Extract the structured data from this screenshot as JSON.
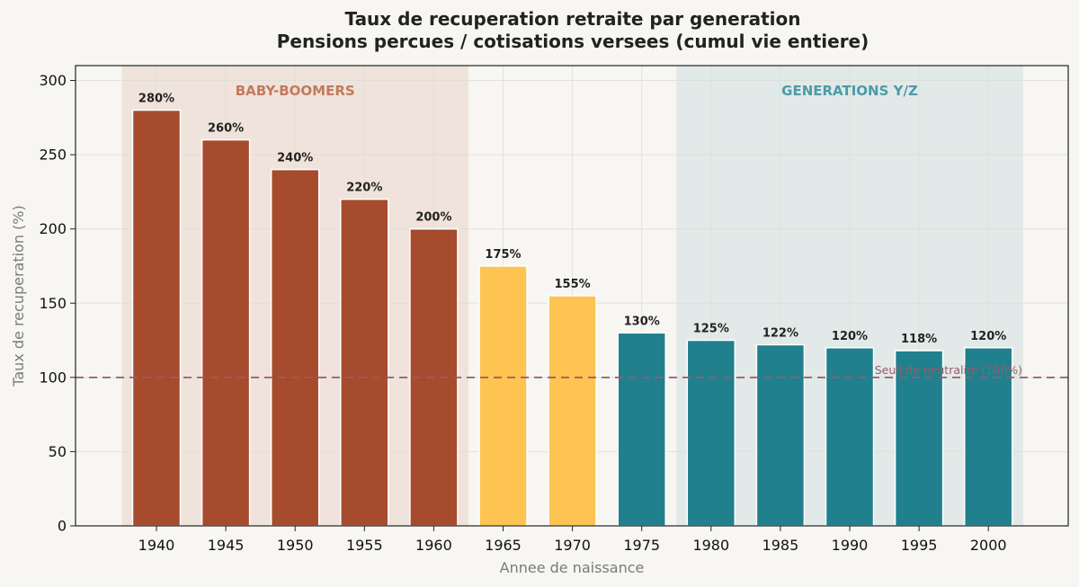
{
  "chart_data": {
    "type": "bar",
    "title": "Taux de recuperation retraite par generation",
    "subtitle": "Pensions percues / cotisations versees (cumul vie entiere)",
    "xlabel": "Annee de naissance",
    "ylabel": "Taux de recuperation (%)",
    "ylim": [
      0,
      310
    ],
    "yticks": [
      0,
      50,
      100,
      150,
      200,
      250,
      300
    ],
    "grid": true,
    "categories": [
      "1940",
      "1945",
      "1950",
      "1955",
      "1960",
      "1965",
      "1970",
      "1975",
      "1980",
      "1985",
      "1990",
      "1995",
      "2000"
    ],
    "values": [
      280,
      260,
      240,
      220,
      200,
      175,
      155,
      130,
      125,
      122,
      120,
      118,
      120
    ],
    "labels": [
      "280%",
      "260%",
      "240%",
      "220%",
      "200%",
      "175%",
      "155%",
      "130%",
      "125%",
      "122%",
      "120%",
      "118%",
      "120%"
    ],
    "groups": [
      "boomer",
      "boomer",
      "boomer",
      "boomer",
      "boomer",
      "x",
      "x",
      "yz",
      "yz",
      "yz",
      "yz",
      "yz",
      "yz"
    ],
    "group_colors": {
      "boomer": "#a64b2e",
      "x": "#fdc452",
      "yz": "#21808d"
    },
    "regions": [
      {
        "label": "BABY-BOOMERS",
        "from": "1940",
        "to": "1960",
        "color": "#c07a5c",
        "fill": "#e7cbbf"
      },
      {
        "label": "GENERATIONS Y/Z",
        "from": "1980",
        "to": "2000",
        "color": "#4d9ba6",
        "fill": "#c5dcdc"
      }
    ],
    "reference_line": {
      "value": 100,
      "label": "Seuil de neutralite (100%)",
      "color": "#9a5a68"
    }
  }
}
